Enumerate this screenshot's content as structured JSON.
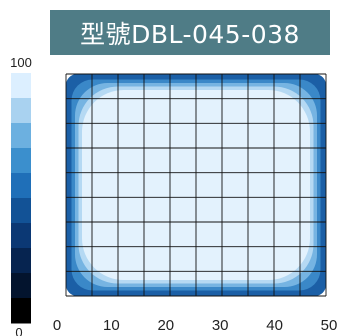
{
  "chart_data": {
    "type": "heatmap",
    "title": "型號DBL-045-038",
    "xlim": [
      0,
      50
    ],
    "xticks": [
      "0",
      "10",
      "20",
      "30",
      "40",
      "50"
    ],
    "grid": true,
    "colorbar": {
      "min_label": "0",
      "max_label": "100",
      "levels": [
        {
          "color": "#dcefff"
        },
        {
          "color": "#a9d2f0"
        },
        {
          "color": "#6cb0e0"
        },
        {
          "color": "#3b8fcd"
        },
        {
          "color": "#1f6fb8"
        },
        {
          "color": "#125296"
        },
        {
          "color": "#0b3874"
        },
        {
          "color": "#062450"
        },
        {
          "color": "#03142e"
        },
        {
          "color": "#000000"
        }
      ]
    },
    "field": {
      "levels": [
        {
          "color": "#1b5fa6",
          "roundness": 0.05
        },
        {
          "color": "#3a88c8",
          "roundness": 0.1
        },
        {
          "color": "#76b4e2",
          "roundness": 0.16
        },
        {
          "color": "#b5d9f3",
          "roundness": 0.2
        },
        {
          "color": "#e3f2fd",
          "roundness": 0.22
        }
      ]
    }
  }
}
